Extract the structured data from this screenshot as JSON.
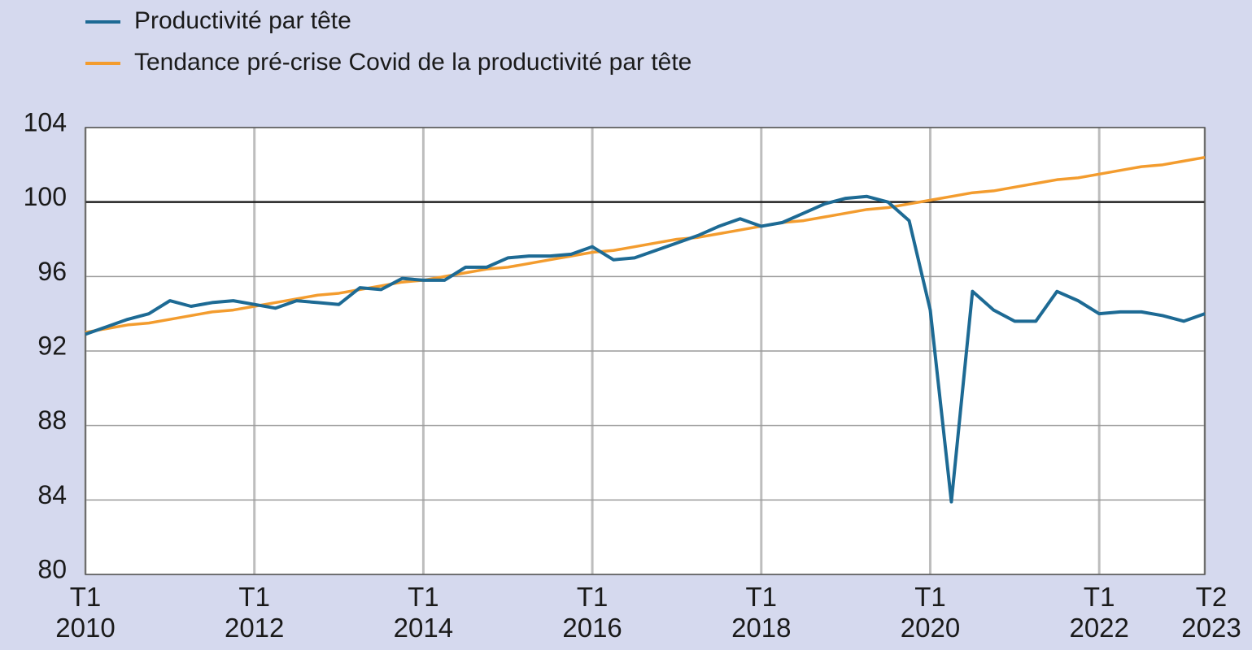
{
  "chart_data": {
    "type": "line",
    "categories": [
      "T1\n2010",
      null,
      null,
      null,
      null,
      null,
      null,
      null,
      "T1\n2012",
      null,
      null,
      null,
      null,
      null,
      null,
      null,
      "T1\n2014",
      null,
      null,
      null,
      null,
      null,
      null,
      null,
      "T1\n2016",
      null,
      null,
      null,
      null,
      null,
      null,
      null,
      "T1\n2018",
      null,
      null,
      null,
      null,
      null,
      null,
      null,
      "T1\n2020",
      null,
      null,
      null,
      null,
      null,
      null,
      null,
      "T1\n2022",
      null,
      null,
      null,
      null,
      "T2\n2023"
    ],
    "series": [
      {
        "name": "Productivité par tête",
        "color": "#1d6a94",
        "values": [
          92.9,
          93.3,
          93.7,
          94.0,
          94.7,
          94.4,
          94.6,
          94.7,
          94.5,
          94.3,
          94.7,
          94.6,
          94.5,
          95.4,
          95.3,
          95.9,
          95.8,
          95.8,
          96.5,
          96.5,
          97.0,
          97.1,
          97.1,
          97.2,
          97.6,
          96.9,
          97.0,
          97.4,
          97.8,
          98.2,
          98.7,
          99.1,
          98.7,
          98.9,
          99.4,
          99.9,
          100.2,
          100.3,
          100.0,
          99.0,
          94.2,
          83.9,
          95.2,
          94.2,
          93.6,
          93.6,
          95.2,
          94.7,
          94.0,
          94.1,
          94.1,
          93.9,
          93.6,
          94.0
        ]
      },
      {
        "name": "Tendance pré-crise Covid de la productivité par tête",
        "color": "#f39c2e",
        "values": [
          93.0,
          93.2,
          93.4,
          93.5,
          93.7,
          93.9,
          94.1,
          94.2,
          94.4,
          94.6,
          94.8,
          95.0,
          95.1,
          95.3,
          95.5,
          95.7,
          95.8,
          96.0,
          96.2,
          96.4,
          96.5,
          96.7,
          96.9,
          97.1,
          97.3,
          97.4,
          97.6,
          97.8,
          98.0,
          98.1,
          98.3,
          98.5,
          98.7,
          98.9,
          99.0,
          99.2,
          99.4,
          99.6,
          99.7,
          99.9,
          100.1,
          100.3,
          100.5,
          100.6,
          100.8,
          101.0,
          101.2,
          101.3,
          101.5,
          101.7,
          101.9,
          102.0,
          102.2,
          102.4
        ]
      }
    ],
    "ylim": [
      80,
      104
    ],
    "yticks": [
      80,
      84,
      88,
      92,
      96,
      100,
      104
    ],
    "baseline": 100,
    "grid": true,
    "legend": "top-left"
  }
}
